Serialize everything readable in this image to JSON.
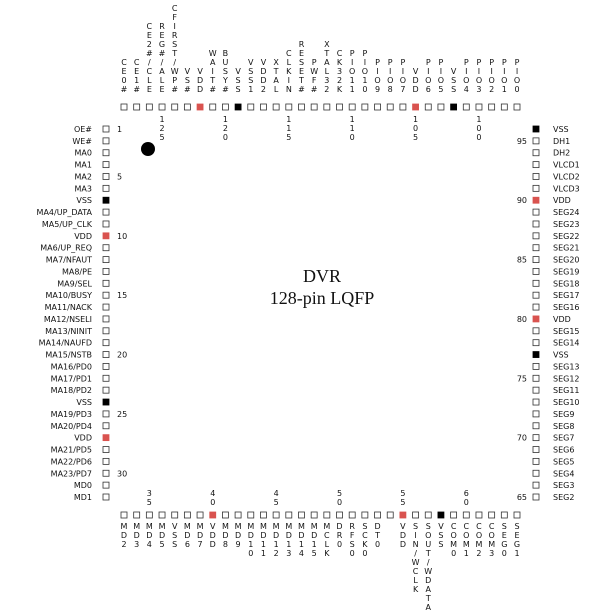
{
  "title": "DVR",
  "subtitle": "128-pin LQFP",
  "left": {
    "numbers": [
      1,
      5,
      10,
      15,
      20,
      25,
      30
    ],
    "pins": [
      {
        "name": "OE#"
      },
      {
        "name": "WE#"
      },
      {
        "name": "MA0"
      },
      {
        "name": "MA1"
      },
      {
        "name": "MA2"
      },
      {
        "name": "MA3"
      },
      {
        "name": "VSS",
        "color": "#000000"
      },
      {
        "name": "MA4/UP_DATA"
      },
      {
        "name": "MA5/UP_CLK"
      },
      {
        "name": "VDD",
        "color": "#d9534f"
      },
      {
        "name": "MA6/UP_REQ"
      },
      {
        "name": "MA7/NFAUT"
      },
      {
        "name": "MA8/PE"
      },
      {
        "name": "MA9/SEL"
      },
      {
        "name": "MA10/BUSY"
      },
      {
        "name": "MA11/NACK"
      },
      {
        "name": "MA12/NSELI"
      },
      {
        "name": "MA13/NINIT"
      },
      {
        "name": "MA14/NAUFD"
      },
      {
        "name": "MA15/NSTB"
      },
      {
        "name": "MA16/PD0"
      },
      {
        "name": "MA17/PD1"
      },
      {
        "name": "MA18/PD2"
      },
      {
        "name": "VSS",
        "color": "#000000"
      },
      {
        "name": "MA19/PD3"
      },
      {
        "name": "MA20/PD4"
      },
      {
        "name": "VDD",
        "color": "#d9534f"
      },
      {
        "name": "MA21/PD5"
      },
      {
        "name": "MA22/PD6"
      },
      {
        "name": "MA23/PD7"
      },
      {
        "name": "MD0"
      },
      {
        "name": "MD1"
      }
    ]
  },
  "bottom": {
    "numbers": [
      35,
      40,
      45,
      50,
      55,
      60
    ],
    "pins": [
      {
        "name": "MD2"
      },
      {
        "name": "MD3"
      },
      {
        "name": "MD4"
      },
      {
        "name": "MD5"
      },
      {
        "name": "VSS"
      },
      {
        "name": "MD6"
      },
      {
        "name": "MD7"
      },
      {
        "name": "VDD",
        "color": "#d9534f"
      },
      {
        "name": "MD8"
      },
      {
        "name": "MD9"
      },
      {
        "name": "MD10"
      },
      {
        "name": "MD11"
      },
      {
        "name": "MD12"
      },
      {
        "name": "MD13"
      },
      {
        "name": "MD14"
      },
      {
        "name": "MD15"
      },
      {
        "name": "MCLK"
      },
      {
        "name": "DR0"
      },
      {
        "name": "RFS0"
      },
      {
        "name": "SCK0"
      },
      {
        "name": "DT0"
      },
      {
        "name": null
      },
      {
        "name": "VDD",
        "color": "#d9534f"
      },
      {
        "name": "SIN/WCLK"
      },
      {
        "name": "SOUT/WDATA"
      },
      {
        "name": "VSS",
        "color": "#000000"
      },
      {
        "name": "COM0"
      },
      {
        "name": "COM1"
      },
      {
        "name": "COM2"
      },
      {
        "name": "COM3"
      },
      {
        "name": "SEG0"
      },
      {
        "name": "SEG1"
      }
    ]
  },
  "right": {
    "numbers": [
      65,
      70,
      75,
      80,
      85,
      90,
      95
    ],
    "pins": [
      {
        "name": "SEG2"
      },
      {
        "name": "SEG3"
      },
      {
        "name": "SEG4"
      },
      {
        "name": "SEG5"
      },
      {
        "name": "SEG6"
      },
      {
        "name": "SEG7"
      },
      {
        "name": "SEG8"
      },
      {
        "name": "SEG9"
      },
      {
        "name": "SEG10"
      },
      {
        "name": "SEG11"
      },
      {
        "name": "SEG12"
      },
      {
        "name": "SEG13"
      },
      {
        "name": "VSS",
        "color": "#000000"
      },
      {
        "name": "SEG14"
      },
      {
        "name": "SEG15"
      },
      {
        "name": "VDD",
        "color": "#d9534f"
      },
      {
        "name": "SEG16"
      },
      {
        "name": "SEG17"
      },
      {
        "name": "SEG18"
      },
      {
        "name": "SEG19"
      },
      {
        "name": "SEG20"
      },
      {
        "name": "SEG21"
      },
      {
        "name": "SEG22"
      },
      {
        "name": "SEG23"
      },
      {
        "name": "SEG24"
      },
      {
        "name": "VDD",
        "color": "#d9534f"
      },
      {
        "name": "VLCD3"
      },
      {
        "name": "VLCD2"
      },
      {
        "name": "VLCD1"
      },
      {
        "name": "DH2"
      },
      {
        "name": "DH1"
      },
      {
        "name": "VSS",
        "color": "#000000"
      }
    ]
  },
  "top": {
    "numbers": [
      100,
      105,
      110,
      115,
      120,
      125
    ],
    "pins": [
      {
        "name": "PIO0"
      },
      {
        "name": "PIO1"
      },
      {
        "name": "PIO2"
      },
      {
        "name": "PIO3"
      },
      {
        "name": "PIO4"
      },
      {
        "name": "VSS",
        "color": "#000000"
      },
      {
        "name": "PIO5"
      },
      {
        "name": "PIO6"
      },
      {
        "name": "VDD",
        "color": "#d9534f"
      },
      {
        "name": "PIO7"
      },
      {
        "name": "PIO8"
      },
      {
        "name": "PIO9"
      },
      {
        "name": "PIO10"
      },
      {
        "name": "PIO11"
      },
      {
        "name": "CK32K"
      },
      {
        "name": "XTAL32"
      },
      {
        "name": "PWF#"
      },
      {
        "name": "RESET#"
      },
      {
        "name": "CLKIN"
      },
      {
        "name": "XTAL"
      },
      {
        "name": "VDD2"
      },
      {
        "name": "VSS1"
      },
      {
        "name": "VSS",
        "color": "#000000"
      },
      {
        "name": "BUSY#"
      },
      {
        "name": "WAIT#"
      },
      {
        "name": "VDD",
        "color": "#d9534f"
      },
      {
        "name": "VS#"
      },
      {
        "name": "CFIRST/WP#"
      },
      {
        "name": "REG#/ALE"
      },
      {
        "name": "CE2#/CLE"
      },
      {
        "name": "CE1#"
      },
      {
        "name": "CE0#"
      }
    ]
  }
}
